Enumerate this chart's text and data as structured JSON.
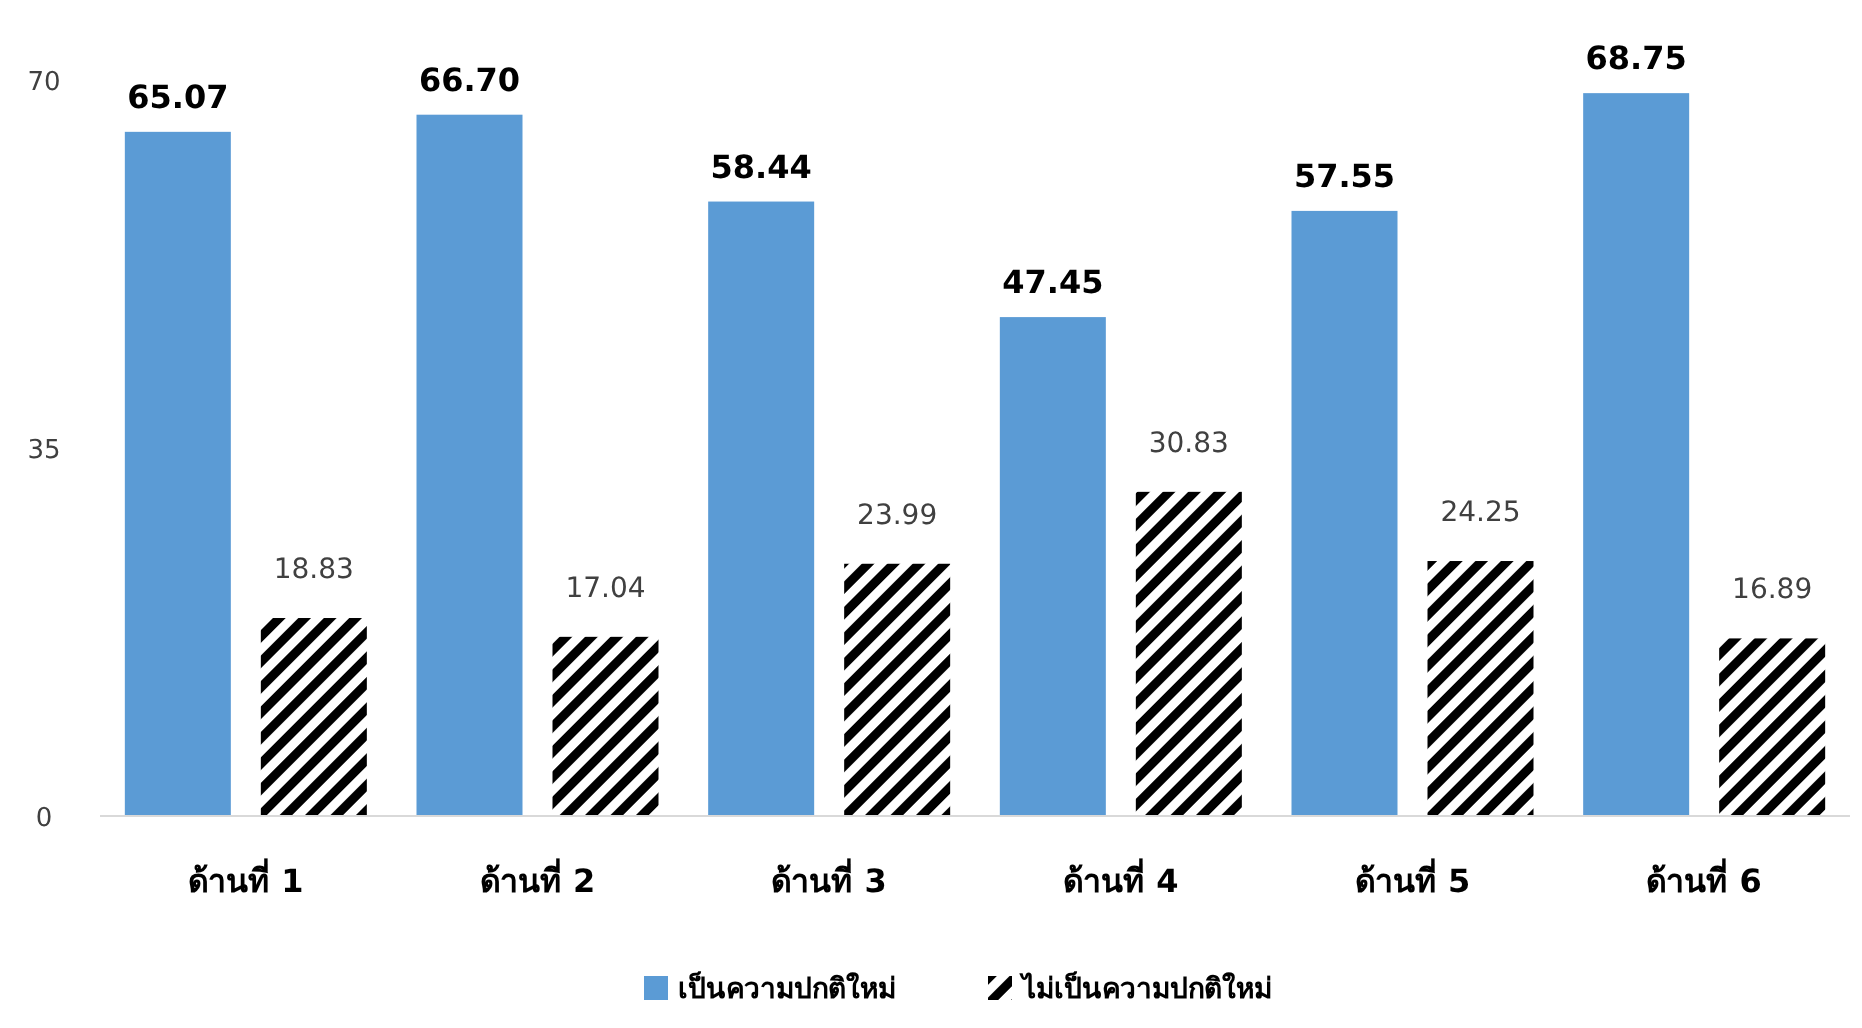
{
  "chart_data": {
    "type": "bar",
    "categories": [
      "ด้านที่ 1",
      "ด้านที่ 2",
      "ด้านที่ 3",
      "ด้านที่ 4",
      "ด้านที่ 5",
      "ด้านที่ 6"
    ],
    "series": [
      {
        "name": "เป็นความปกติใหม่",
        "color": "#5b9bd5",
        "values": [
          65.07,
          66.7,
          58.44,
          47.45,
          57.55,
          68.75
        ],
        "value_labels": [
          "65.07",
          "66.70",
          "58.44",
          "47.45",
          "57.55",
          "68.75"
        ]
      },
      {
        "name": "ไม่เป็นความปกติใหม่",
        "color": "#000000",
        "values": [
          18.83,
          17.04,
          23.99,
          30.83,
          24.25,
          16.89
        ],
        "value_labels": [
          "18.83",
          "17.04",
          "23.99",
          "30.83",
          "24.25",
          "16.89"
        ]
      }
    ],
    "ylim": [
      0,
      70
    ],
    "yticks": [
      0,
      35,
      70
    ],
    "legend": "bottom"
  }
}
